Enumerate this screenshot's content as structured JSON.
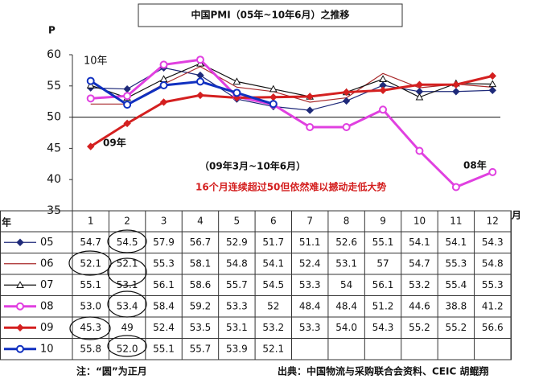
{
  "chart_data": {
    "type": "line",
    "title": "中国PMI（05年~10年6月）之推移",
    "y_label": "P",
    "x_unit": "月",
    "row_header": "年",
    "categories": [
      "1",
      "2",
      "3",
      "4",
      "5",
      "6",
      "7",
      "8",
      "9",
      "10",
      "11",
      "12"
    ],
    "ylim": [
      35,
      60
    ],
    "yticks": [
      35,
      40,
      45,
      50,
      55,
      60
    ],
    "reference_line": 50,
    "series": [
      {
        "name": "05",
        "color": "#1f2a7a",
        "marker": "diamond",
        "line_width": 1.2,
        "values": [
          54.7,
          54.5,
          57.9,
          56.7,
          52.9,
          51.7,
          51.1,
          52.6,
          55.1,
          54.1,
          54.1,
          54.3
        ],
        "value_labels": [
          "54.7",
          "54.5",
          "57.9",
          "56.7",
          "52.9",
          "51.7",
          "51.1",
          "52.6",
          "55.1",
          "54.1",
          "54.1",
          "54.3"
        ]
      },
      {
        "name": "06",
        "color": "#a8282a",
        "marker": "none",
        "line_width": 1.2,
        "values": [
          52.1,
          52.1,
          55.3,
          58.1,
          54.8,
          54.1,
          52.4,
          53.1,
          57,
          54.7,
          55.3,
          54.8
        ],
        "value_labels": [
          "52.1",
          "52.1",
          "55.3",
          "58.1",
          "54.8",
          "54.1",
          "52.4",
          "53.1",
          "57",
          "54.7",
          "55.3",
          "54.8"
        ]
      },
      {
        "name": "07",
        "color": "#111111",
        "marker": "triangle",
        "line_width": 1.2,
        "values": [
          55.1,
          53.1,
          56.1,
          58.6,
          55.7,
          54.5,
          53.3,
          54,
          56.1,
          53.2,
          55.4,
          55.3
        ],
        "value_labels": [
          "55.1",
          "53.1",
          "56.1",
          "58.6",
          "55.7",
          "54.5",
          "53.3",
          "54",
          "56.1",
          "53.2",
          "55.4",
          "55.3"
        ]
      },
      {
        "name": "08",
        "color": "#e040e0",
        "marker": "circle",
        "line_width": 3,
        "values": [
          53,
          53.4,
          58.4,
          59.2,
          53.3,
          52,
          48.4,
          48.4,
          51.2,
          44.6,
          38.8,
          41.2
        ],
        "value_labels": [
          "53.0",
          "53.4",
          "58.4",
          "59.2",
          "53.3",
          "52",
          "48.4",
          "48.4",
          "51.2",
          "44.6",
          "38.8",
          "41.2"
        ]
      },
      {
        "name": "09",
        "color": "#d42020",
        "marker": "diamond",
        "line_width": 3,
        "values": [
          45.3,
          49,
          52.4,
          53.5,
          53.1,
          53.2,
          53.3,
          54,
          54.3,
          55.2,
          55.2,
          56.6
        ],
        "value_labels": [
          "45.3",
          "49",
          "52.4",
          "53.5",
          "53.1",
          "53.2",
          "53.3",
          "54.0",
          "54.3",
          "55.2",
          "55.2",
          "56.6"
        ]
      },
      {
        "name": "10",
        "color": "#1030c0",
        "marker": "circle",
        "line_width": 3,
        "values": [
          55.8,
          52,
          55.1,
          55.7,
          53.9,
          52.1,
          null,
          null,
          null,
          null,
          null,
          null
        ],
        "value_labels": [
          "55.8",
          "52.0",
          "55.1",
          "55.7",
          "53.9",
          "52.1",
          null,
          null,
          null,
          null,
          null,
          null
        ]
      }
    ],
    "annotations": [
      "10年",
      "09年",
      "08年",
      "（09年3月~10年6月）",
      "16个月连续超过50但依然难以撼动走低大势"
    ],
    "notes": [
      "注：“圆”为正月",
      "出典：中国物流与采购联合会资料、CEIC 胡鲲翔"
    ]
  }
}
